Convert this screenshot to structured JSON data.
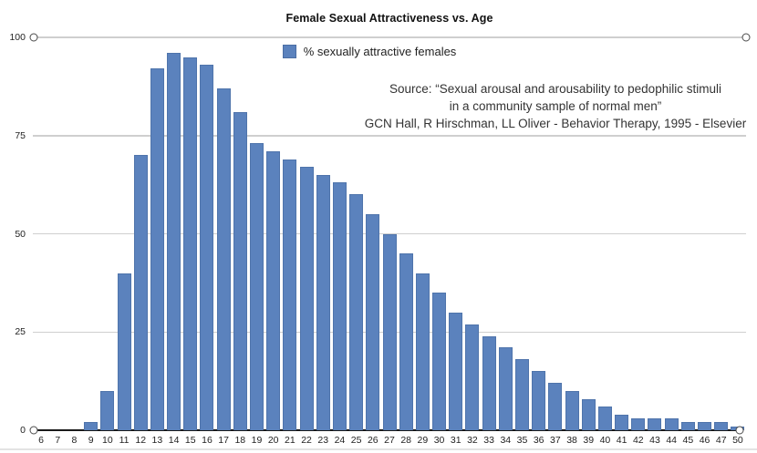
{
  "page_bg": "#ffffff",
  "chart_data": {
    "type": "bar",
    "title": "Female Sexual Attractiveness vs. Age",
    "legend_label": "% sexually attractive females",
    "legend_position": "top-center",
    "grid": true,
    "bar_color": "#5b82bd",
    "gridline_color": "#cfcfcf",
    "axis_color": "#1a1a1a",
    "xlabel": "",
    "ylabel": "",
    "ylim": [
      0,
      100
    ],
    "yticks": [
      0,
      25,
      50,
      75,
      100
    ],
    "categories": [
      "6",
      "7",
      "8",
      "9",
      "10",
      "11",
      "12",
      "13",
      "14",
      "15",
      "16",
      "17",
      "18",
      "19",
      "20",
      "21",
      "22",
      "23",
      "24",
      "25",
      "26",
      "27",
      "28",
      "29",
      "30",
      "31",
      "32",
      "33",
      "34",
      "35",
      "36",
      "37",
      "38",
      "39",
      "40",
      "41",
      "42",
      "43",
      "44",
      "45",
      "46",
      "47",
      "50"
    ],
    "values": [
      0,
      0,
      0,
      2,
      10,
      40,
      70,
      92,
      96,
      95,
      93,
      87,
      81,
      73,
      71,
      69,
      67,
      65,
      63,
      60,
      55,
      50,
      45,
      40,
      35,
      30,
      27,
      24,
      21,
      18,
      15,
      12,
      10,
      8,
      6,
      4,
      3,
      3,
      3,
      2,
      2,
      2,
      1
    ],
    "annotation_lines": [
      "Source: “Sexual arousal and arousability to pedophilic stimuli",
      "in a community sample of normal men”",
      "GCN Hall, R Hirschman, LL Oliver - Behavior Therapy, 1995 - Elsevier"
    ]
  }
}
